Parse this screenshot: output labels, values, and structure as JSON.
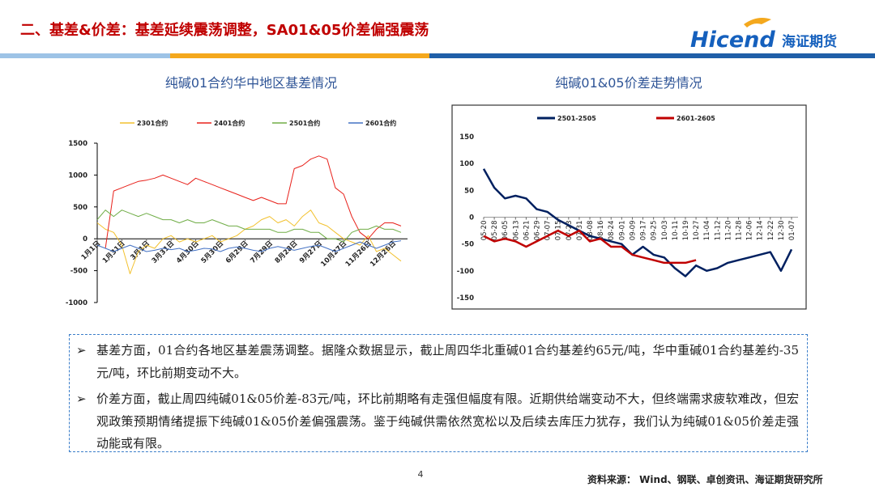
{
  "header": {
    "title": "二、基差&价差：基差延续震荡调整，SA01&05价差偏强震荡",
    "logo_text": "Hicend",
    "logo_cn": "海证期货"
  },
  "chart_data": [
    {
      "type": "line",
      "title": "纯碱01合约华中地区基差情况",
      "categories": [
        "1月1日",
        null,
        null,
        "1月31日",
        null,
        null,
        "3月1日",
        null,
        null,
        "3月31日",
        null,
        null,
        "4月30日",
        null,
        null,
        "5月30日",
        null,
        null,
        "6月29日",
        null,
        null,
        "7月29日",
        null,
        null,
        "8月28日",
        null,
        null,
        "9月27日",
        null,
        null,
        "10月27日",
        null,
        null,
        "11月26日",
        null,
        null,
        "12月26日",
        null
      ],
      "ylim": [
        -1000,
        1500
      ],
      "yticks": [
        -1000,
        -500,
        0,
        500,
        1000,
        1500
      ],
      "series": [
        {
          "name": "2301合约",
          "color": "#F2C12E",
          "values": [
            250,
            150,
            100,
            -100,
            -550,
            -200,
            -100,
            -150,
            0,
            50,
            -50,
            0,
            -50,
            0,
            50,
            -50,
            0,
            50,
            150,
            200,
            300,
            350,
            250,
            300,
            200,
            350,
            450,
            250,
            200,
            100,
            0,
            -50,
            -100,
            50,
            -200,
            -150,
            -250,
            -350
          ]
        },
        {
          "name": "2401合约",
          "color": "#E8201A",
          "values": [
            null,
            -150,
            750,
            800,
            850,
            900,
            920,
            950,
            1000,
            950,
            900,
            850,
            950,
            900,
            850,
            800,
            750,
            700,
            650,
            600,
            650,
            600,
            550,
            550,
            1100,
            1150,
            1250,
            1300,
            1250,
            800,
            700,
            350,
            100,
            0,
            150,
            250,
            250,
            200
          ]
        },
        {
          "name": "2501合约",
          "color": "#70AD47",
          "values": [
            300,
            450,
            350,
            450,
            400,
            350,
            400,
            350,
            300,
            300,
            250,
            300,
            250,
            250,
            300,
            250,
            200,
            200,
            150,
            150,
            150,
            150,
            100,
            100,
            150,
            150,
            100,
            100,
            0,
            0,
            -50,
            100,
            150,
            150,
            200,
            150,
            150,
            100
          ]
        },
        {
          "name": "2601合约",
          "color": "#4472C4",
          "values": [
            -100,
            -150,
            -200,
            -150,
            -100,
            -150,
            -200,
            -180,
            -150,
            -170,
            -150,
            -200,
            -180,
            -150,
            -160,
            -200,
            -150,
            -130,
            -150,
            -180,
            -200,
            -150,
            -120,
            -150,
            -180,
            -150,
            -120,
            -100,
            -150,
            -200,
            -150,
            -100,
            -50,
            -100,
            -150,
            -100,
            -50,
            -30
          ]
        }
      ]
    },
    {
      "type": "line",
      "title": "纯碱01&05价差走势情况",
      "categories": [
        "05-20",
        "05-28",
        "06-05",
        "06-13",
        "06-21",
        "06-29",
        "07-07",
        "07-15",
        "07-23",
        "07-31",
        "08-08",
        "08-16",
        "08-24",
        "09-01",
        "09-09",
        "09-17",
        "09-25",
        "10-03",
        "10-11",
        "10-19",
        "10-27",
        "11-04",
        "11-12",
        "11-20",
        "11-28",
        "12-06",
        "12-14",
        "12-22",
        "12-30",
        "01-07"
      ],
      "ylim": [
        -150,
        150
      ],
      "yticks": [
        -150,
        -100,
        -50,
        0,
        50,
        100,
        150
      ],
      "series": [
        {
          "name": "2501-2505",
          "color": "#002060",
          "values": [
            90,
            55,
            35,
            40,
            35,
            15,
            10,
            -5,
            -15,
            -25,
            -35,
            -40,
            -45,
            -50,
            -70,
            -55,
            -70,
            -75,
            -95,
            -110,
            -90,
            -100,
            -95,
            -85,
            -80,
            -75,
            -70,
            -65,
            -100,
            -60
          ]
        },
        {
          "name": "2601-2605",
          "color": "#C00000",
          "values": [
            -35,
            -45,
            -40,
            -45,
            -55,
            -45,
            -35,
            -25,
            -35,
            -25,
            -45,
            -40,
            -55,
            -55,
            -70,
            -75,
            -80,
            -85,
            -85,
            -85,
            -80,
            null,
            null,
            null,
            null,
            null,
            null,
            null,
            null,
            null
          ]
        }
      ]
    }
  ],
  "text": {
    "bullets": [
      "基差方面，01合约各地区基差震荡调整。据隆众数据显示，截止周四华北重碱01合约基差约65元/吨，华中重碱01合约基差约-35元/吨，环比前期变动不大。",
      "价差方面，截止周四纯碱01&05价差-83元/吨，环比前期略有走强但幅度有限。近期供给端变动不大，但终端需求疲软难改，但宏观政策预期情绪提振下纯碱01&05价差偏强震荡。鉴于纯碱供需依然宽松以及后续去库压力犹存，我们认为纯碱01&05价差走强动能或有限。"
    ]
  },
  "footer": {
    "page": "4",
    "source": "资料来源： Wind、钢联、卓创资讯、海证期货研究所"
  }
}
